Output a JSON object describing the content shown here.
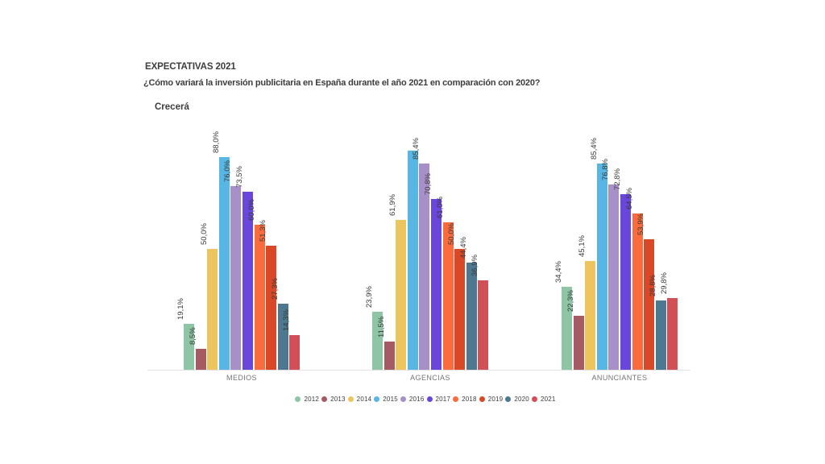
{
  "title": "EXPECTATIVAS 2021",
  "subtitle": "¿Cómo variará la inversión publicitaria en España durante el año 2021 en comparación con 2020?",
  "section_label": "Crecerá",
  "chart_data": {
    "type": "bar",
    "title": "EXPECTATIVAS 2021",
    "subtitle": "¿Cómo variará la inversión publicitaria en España durante el año 2021 en comparación con 2020?",
    "answer_shown": "Crecerá",
    "categories": [
      "MEDIOS",
      "AGENCIAS",
      "ANUNCIANTES"
    ],
    "value_unit": "%",
    "ylim": [
      0,
      100
    ],
    "grid": false,
    "legend_position": "bottom",
    "series": [
      {
        "name": "2012",
        "color": "#8ec5a4",
        "values": [
          19.1,
          23.9,
          34.4
        ],
        "labels": [
          "19,1%",
          "23,9%",
          "34,4%"
        ]
      },
      {
        "name": "2013",
        "color": "#a65b63",
        "values": [
          8.5,
          11.5,
          22.3
        ],
        "labels": [
          "8,5%",
          "11,5%",
          "22,3%"
        ]
      },
      {
        "name": "2014",
        "color": "#edc55f",
        "values": [
          50.0,
          61.9,
          45.1
        ],
        "labels": [
          "50,0%",
          "61,9%",
          "45,1%"
        ]
      },
      {
        "name": "2015",
        "color": "#57b6e3",
        "values": [
          88.0,
          90.8,
          85.4
        ],
        "labels": [
          "88,0%",
          "",
          "85,4%"
        ]
      },
      {
        "name": "2016",
        "color": "#a78fc7",
        "values": [
          76.0,
          85.4,
          76.8
        ],
        "labels": [
          "76,0%",
          "85,4%",
          "76,8%"
        ]
      },
      {
        "name": "2017",
        "color": "#6847da",
        "values": [
          73.5,
          70.8,
          72.8
        ],
        "labels": [
          "73,5%",
          "70,8%",
          "72,8%"
        ]
      },
      {
        "name": "2018",
        "color": "#fa6b3e",
        "values": [
          60.0,
          61.0,
          64.5
        ],
        "labels": [
          "60,0%",
          "61,0%",
          "64,5%"
        ]
      },
      {
        "name": "2019",
        "color": "#d94827",
        "values": [
          51.3,
          50.0,
          53.9
        ],
        "labels": [
          "51,3%",
          "50,0%",
          "53,9%"
        ]
      },
      {
        "name": "2020",
        "color": "#4d7890",
        "values": [
          27.3,
          44.4,
          28.8
        ],
        "labels": [
          "27,3%",
          "44,4%",
          "28,8%"
        ]
      },
      {
        "name": "2021",
        "color": "#d15058",
        "values": [
          14.3,
          36.9,
          29.8
        ],
        "labels": [
          "14,3%",
          "36,9%",
          "29,8%"
        ]
      }
    ]
  }
}
